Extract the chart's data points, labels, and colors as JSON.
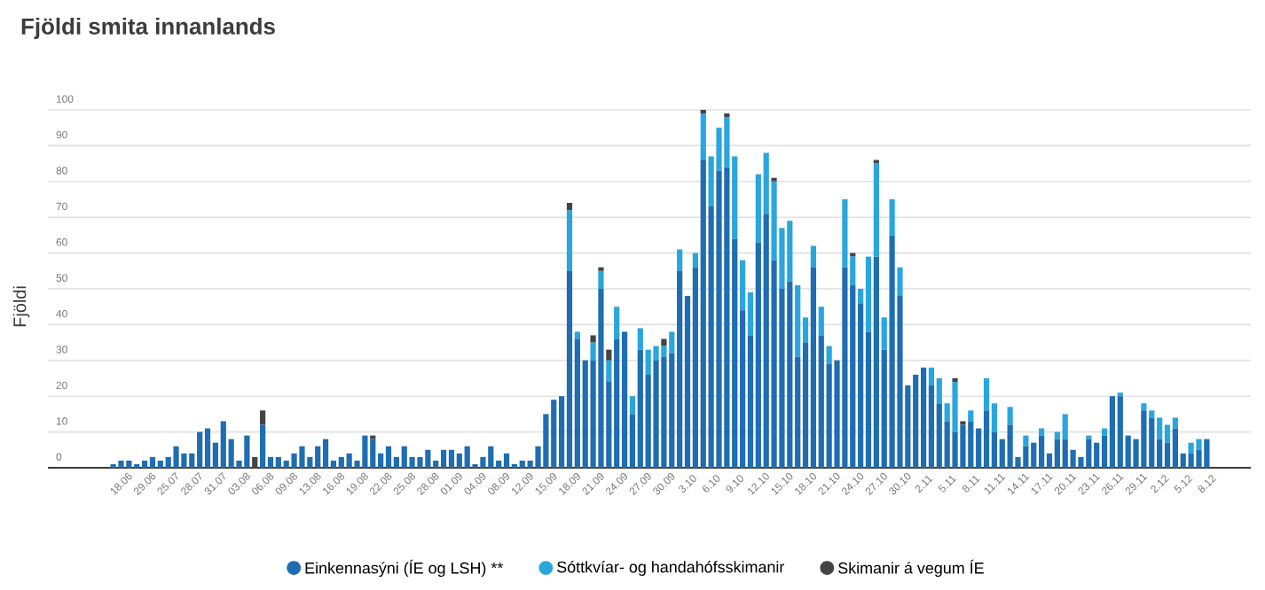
{
  "chart_data": {
    "type": "bar",
    "stacked": true,
    "title": "Fjöldi smita innanlands",
    "ylabel": "Fjöldi",
    "categories": [
      null,
      "18.06",
      null,
      null,
      "29.06",
      null,
      null,
      "25.07",
      null,
      null,
      "28.07",
      null,
      null,
      "31.07",
      null,
      null,
      "03.08",
      null,
      null,
      "06.08",
      null,
      null,
      "09.08",
      null,
      null,
      "13.08",
      null,
      null,
      "16.08",
      null,
      null,
      "19.08",
      null,
      null,
      "22.08",
      null,
      null,
      "25.08",
      null,
      null,
      "28.08",
      null,
      null,
      "01.09",
      null,
      null,
      "04.09",
      null,
      null,
      "08.09",
      null,
      null,
      "12.09",
      null,
      null,
      "15.09",
      null,
      null,
      "18.09",
      null,
      null,
      "21.09",
      null,
      null,
      "24.09",
      null,
      null,
      "27.09",
      null,
      null,
      "30.09",
      null,
      null,
      "3.10",
      null,
      null,
      "6.10",
      null,
      null,
      "9.10",
      null,
      null,
      "12.10",
      null,
      null,
      "15.10",
      null,
      null,
      "18.10",
      null,
      null,
      "21.10",
      null,
      null,
      "24.10",
      null,
      null,
      "27.10",
      null,
      null,
      "30.10",
      null,
      null,
      "2.11",
      null,
      null,
      "5.11",
      null,
      null,
      "8.11",
      null,
      null,
      "11.11",
      null,
      null,
      "14.11",
      null,
      null,
      "17.11",
      null,
      null,
      "20.11",
      null,
      null,
      "23.11",
      null,
      null,
      "26.11",
      null,
      null,
      "29.11",
      null,
      null,
      "2.12",
      null,
      null,
      "5.12",
      null,
      null,
      "8.12"
    ],
    "series": [
      {
        "name": "Einkennasýni (ÍE og LSH) **",
        "color": "#1f6db3",
        "values": [
          1,
          2,
          2,
          1,
          2,
          3,
          2,
          3,
          6,
          4,
          4,
          10,
          11,
          7,
          13,
          8,
          2,
          9,
          0,
          12,
          3,
          3,
          2,
          4,
          6,
          3,
          6,
          8,
          2,
          3,
          4,
          2,
          9,
          8,
          4,
          6,
          3,
          6,
          3,
          3,
          5,
          2,
          5,
          5,
          4,
          6,
          1,
          3,
          6,
          2,
          4,
          1,
          2,
          2,
          6,
          15,
          19,
          20,
          55,
          36,
          30,
          30,
          50,
          24,
          36,
          38,
          15,
          33,
          26,
          30,
          31,
          32,
          55,
          48,
          56,
          86,
          73,
          83,
          84,
          64,
          44,
          37,
          63,
          71,
          58,
          50,
          52,
          31,
          35,
          56,
          37,
          29,
          30,
          56,
          51,
          46,
          38,
          59,
          33,
          65,
          48,
          23,
          26,
          28,
          23,
          18,
          13,
          10,
          12,
          13,
          11,
          16,
          10,
          8,
          12,
          3,
          6,
          7,
          9,
          4,
          8,
          8,
          5,
          3,
          8,
          7,
          9,
          20,
          20,
          9,
          8,
          16,
          14,
          8,
          7,
          11,
          4,
          4,
          5,
          8
        ]
      },
      {
        "name": "Sóttkvíar- og handahófsskimanir",
        "color": "#2aa6df",
        "values": [
          0,
          0,
          0,
          0,
          0,
          0,
          0,
          0,
          0,
          0,
          0,
          0,
          0,
          0,
          0,
          0,
          0,
          0,
          0,
          0,
          0,
          0,
          0,
          0,
          0,
          0,
          0,
          0,
          0,
          0,
          0,
          0,
          0,
          0,
          0,
          0,
          0,
          0,
          0,
          0,
          0,
          0,
          0,
          0,
          0,
          0,
          0,
          0,
          0,
          0,
          0,
          0,
          0,
          0,
          0,
          0,
          0,
          0,
          17,
          2,
          0,
          5,
          5,
          6,
          9,
          0,
          5,
          6,
          7,
          4,
          3,
          6,
          6,
          0,
          4,
          13,
          14,
          12,
          14,
          23,
          14,
          12,
          19,
          17,
          22,
          17,
          17,
          20,
          7,
          6,
          8,
          5,
          0,
          19,
          8,
          4,
          21,
          26,
          9,
          10,
          8,
          0,
          0,
          0,
          5,
          7,
          5,
          14,
          0,
          3,
          0,
          9,
          8,
          0,
          5,
          0,
          3,
          0,
          2,
          0,
          2,
          7,
          0,
          0,
          1,
          0,
          2,
          0,
          1,
          0,
          0,
          2,
          2,
          6,
          5,
          3,
          0,
          3,
          3,
          0
        ]
      },
      {
        "name": "Skimanir á vegum ÍE",
        "color": "#444444",
        "values": [
          0,
          0,
          0,
          0,
          0,
          0,
          0,
          0,
          0,
          0,
          0,
          0,
          0,
          0,
          0,
          0,
          0,
          0,
          3,
          4,
          0,
          0,
          0,
          0,
          0,
          0,
          0,
          0,
          0,
          0,
          0,
          0,
          0,
          1,
          0,
          0,
          0,
          0,
          0,
          0,
          0,
          0,
          0,
          0,
          0,
          0,
          0,
          0,
          0,
          0,
          0,
          0,
          0,
          0,
          0,
          0,
          0,
          0,
          2,
          0,
          0,
          2,
          1,
          3,
          0,
          0,
          0,
          0,
          0,
          0,
          2,
          0,
          0,
          0,
          0,
          1,
          0,
          0,
          1,
          0,
          0,
          0,
          0,
          0,
          1,
          0,
          0,
          0,
          0,
          0,
          0,
          0,
          0,
          0,
          1,
          0,
          0,
          1,
          0,
          0,
          0,
          0,
          0,
          0,
          0,
          0,
          0,
          1,
          1,
          0,
          0,
          0,
          0,
          0,
          0,
          0,
          0,
          0,
          0,
          0,
          0,
          0,
          0,
          0,
          0,
          0,
          0,
          0,
          0,
          0,
          0,
          0,
          0,
          0,
          0,
          0,
          0,
          0,
          0,
          0
        ]
      }
    ],
    "ylim": [
      0,
      100
    ],
    "yticks": [
      0,
      10,
      20,
      30,
      40,
      50,
      60,
      70,
      80,
      90,
      100
    ],
    "grid": "y",
    "legend": "bottom"
  }
}
